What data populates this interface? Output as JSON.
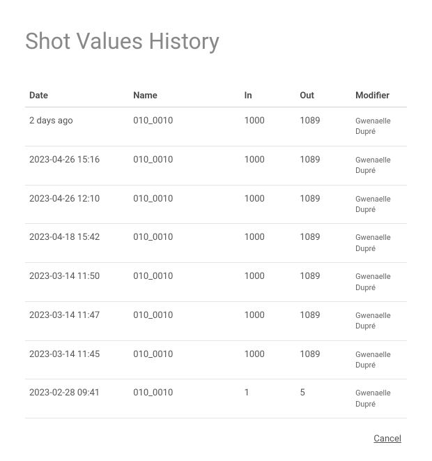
{
  "header": {
    "title": "Shot Values History"
  },
  "table": {
    "columns": {
      "date": "Date",
      "name": "Name",
      "in": "In",
      "out": "Out",
      "modifier": "Modifier"
    },
    "rows": [
      {
        "date": "2 days ago",
        "name": "010_0010",
        "in": "1000",
        "out": "1089",
        "modifier": "Gwenaelle Dupré"
      },
      {
        "date": "2023-04-26 15:16",
        "name": "010_0010",
        "in": "1000",
        "out": "1089",
        "modifier": "Gwenaelle Dupré"
      },
      {
        "date": "2023-04-26 12:10",
        "name": "010_0010",
        "in": "1000",
        "out": "1089",
        "modifier": "Gwenaelle Dupré"
      },
      {
        "date": "2023-04-18 15:42",
        "name": "010_0010",
        "in": "1000",
        "out": "1089",
        "modifier": "Gwenaelle Dupré"
      },
      {
        "date": "2023-03-14 11:50",
        "name": "010_0010",
        "in": "1000",
        "out": "1089",
        "modifier": "Gwenaelle Dupré"
      },
      {
        "date": "2023-03-14 11:47",
        "name": "010_0010",
        "in": "1000",
        "out": "1089",
        "modifier": "Gwenaelle Dupré"
      },
      {
        "date": "2023-03-14 11:45",
        "name": "010_0010",
        "in": "1000",
        "out": "1089",
        "modifier": "Gwenaelle Dupré"
      },
      {
        "date": "2023-02-28 09:41",
        "name": "010_0010",
        "in": "1",
        "out": "5",
        "modifier": "Gwenaelle Dupré"
      }
    ]
  },
  "footer": {
    "cancel_label": "Cancel"
  },
  "style": {
    "background_color": "#ffffff",
    "title_color": "#888888",
    "text_color": "#555555",
    "header_border": "#d0d0d0",
    "row_border": "#e5e5e5",
    "title_fontsize": 32,
    "body_fontsize": 13,
    "modifier_fontsize": 11
  }
}
